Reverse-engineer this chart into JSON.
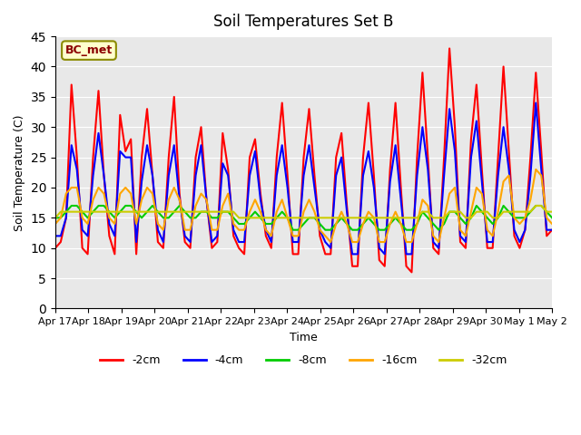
{
  "title": "Soil Temperatures Set B",
  "xlabel": "Time",
  "ylabel": "Soil Temperature (C)",
  "ylim": [
    0,
    45
  ],
  "yticks": [
    0,
    5,
    10,
    15,
    20,
    25,
    30,
    35,
    40,
    45
  ],
  "plot_bg_color": "#e8e8e8",
  "legend_label": "BC_met",
  "legend_label_color": "#8b0000",
  "legend_label_bg": "#ffffcc",
  "series_colors": {
    "-2cm": "#ff0000",
    "-4cm": "#0000ff",
    "-8cm": "#00cc00",
    "-16cm": "#ffa500",
    "-32cm": "#cccc00"
  },
  "line_width": 1.5,
  "x_tick_labels": [
    "Apr 17",
    "Apr 18",
    "Apr 19",
    "Apr 20",
    "Apr 21",
    "Apr 22",
    "Apr 23",
    "Apr 24",
    "Apr 25",
    "Apr 26",
    "Apr 27",
    "Apr 28",
    "Apr 29",
    "Apr 30",
    "May 1",
    "May 2"
  ],
  "data_2cm": [
    10,
    11,
    15,
    37,
    25,
    10,
    9,
    25,
    36,
    22,
    12,
    9,
    32,
    26,
    28,
    9,
    25,
    33,
    22,
    11,
    10,
    25,
    35,
    19,
    11,
    10,
    25,
    30,
    18,
    10,
    11,
    29,
    23,
    12,
    10,
    9,
    25,
    28,
    19,
    12,
    10,
    25,
    34,
    22,
    9,
    9,
    25,
    33,
    22,
    12,
    9,
    9,
    25,
    29,
    17,
    7,
    7,
    25,
    34,
    22,
    8,
    7,
    23,
    34,
    20,
    7,
    6,
    25,
    39,
    25,
    10,
    9,
    25,
    43,
    30,
    11,
    10,
    28,
    37,
    23,
    10,
    10,
    25,
    40,
    26,
    12,
    10,
    13,
    25,
    39,
    26,
    12,
    13
  ],
  "data_4cm": [
    12,
    12,
    15,
    27,
    23,
    13,
    12,
    22,
    29,
    22,
    14,
    12,
    26,
    25,
    25,
    11,
    21,
    27,
    22,
    13,
    11,
    22,
    27,
    18,
    12,
    11,
    22,
    27,
    18,
    11,
    12,
    24,
    22,
    13,
    11,
    11,
    22,
    26,
    18,
    13,
    11,
    22,
    27,
    20,
    11,
    11,
    22,
    27,
    20,
    13,
    11,
    10,
    22,
    25,
    16,
    9,
    9,
    22,
    26,
    20,
    10,
    9,
    21,
    27,
    18,
    9,
    9,
    22,
    30,
    23,
    11,
    10,
    22,
    33,
    26,
    12,
    11,
    25,
    31,
    21,
    11,
    11,
    22,
    30,
    23,
    13,
    11,
    13,
    22,
    34,
    23,
    13,
    13
  ],
  "data_8cm": [
    15,
    15,
    16,
    17,
    17,
    16,
    15,
    16,
    17,
    17,
    16,
    15,
    16,
    17,
    17,
    16,
    15,
    16,
    17,
    16,
    15,
    15,
    16,
    17,
    16,
    15,
    15,
    16,
    16,
    15,
    15,
    16,
    16,
    15,
    14,
    14,
    15,
    16,
    15,
    14,
    14,
    15,
    16,
    15,
    13,
    13,
    14,
    15,
    15,
    14,
    13,
    13,
    14,
    15,
    14,
    13,
    13,
    14,
    15,
    14,
    13,
    13,
    14,
    15,
    14,
    13,
    13,
    14,
    16,
    15,
    14,
    13,
    14,
    16,
    16,
    15,
    14,
    15,
    17,
    16,
    15,
    14,
    15,
    17,
    16,
    15,
    15,
    15,
    16,
    17,
    17,
    16,
    15
  ],
  "data_16cm": [
    14,
    15,
    19,
    20,
    20,
    15,
    14,
    18,
    20,
    19,
    15,
    14,
    19,
    20,
    19,
    14,
    18,
    20,
    19,
    14,
    13,
    18,
    20,
    18,
    13,
    13,
    17,
    19,
    18,
    13,
    13,
    17,
    19,
    14,
    13,
    13,
    16,
    18,
    16,
    13,
    12,
    16,
    18,
    15,
    12,
    12,
    16,
    18,
    16,
    13,
    12,
    11,
    14,
    16,
    14,
    11,
    11,
    14,
    16,
    15,
    11,
    11,
    14,
    16,
    14,
    11,
    11,
    14,
    18,
    17,
    12,
    11,
    15,
    19,
    20,
    13,
    12,
    16,
    20,
    19,
    13,
    12,
    16,
    21,
    22,
    15,
    14,
    15,
    18,
    23,
    22,
    15,
    14
  ],
  "data_32cm": [
    15,
    16,
    16,
    16,
    16,
    16,
    16,
    16,
    16,
    16,
    16,
    16,
    16,
    16,
    16,
    16,
    16,
    16,
    16,
    16,
    16,
    16,
    16,
    16,
    16,
    16,
    16,
    16,
    16,
    16,
    16,
    16,
    16,
    16,
    15,
    15,
    15,
    15,
    15,
    15,
    15,
    15,
    15,
    15,
    15,
    15,
    15,
    15,
    15,
    15,
    15,
    15,
    15,
    15,
    15,
    15,
    15,
    15,
    15,
    15,
    15,
    15,
    15,
    15,
    15,
    15,
    15,
    15,
    16,
    16,
    15,
    15,
    15,
    16,
    16,
    16,
    15,
    15,
    16,
    16,
    16,
    15,
    15,
    16,
    16,
    16,
    16,
    16,
    16,
    17,
    17,
    16,
    16
  ]
}
